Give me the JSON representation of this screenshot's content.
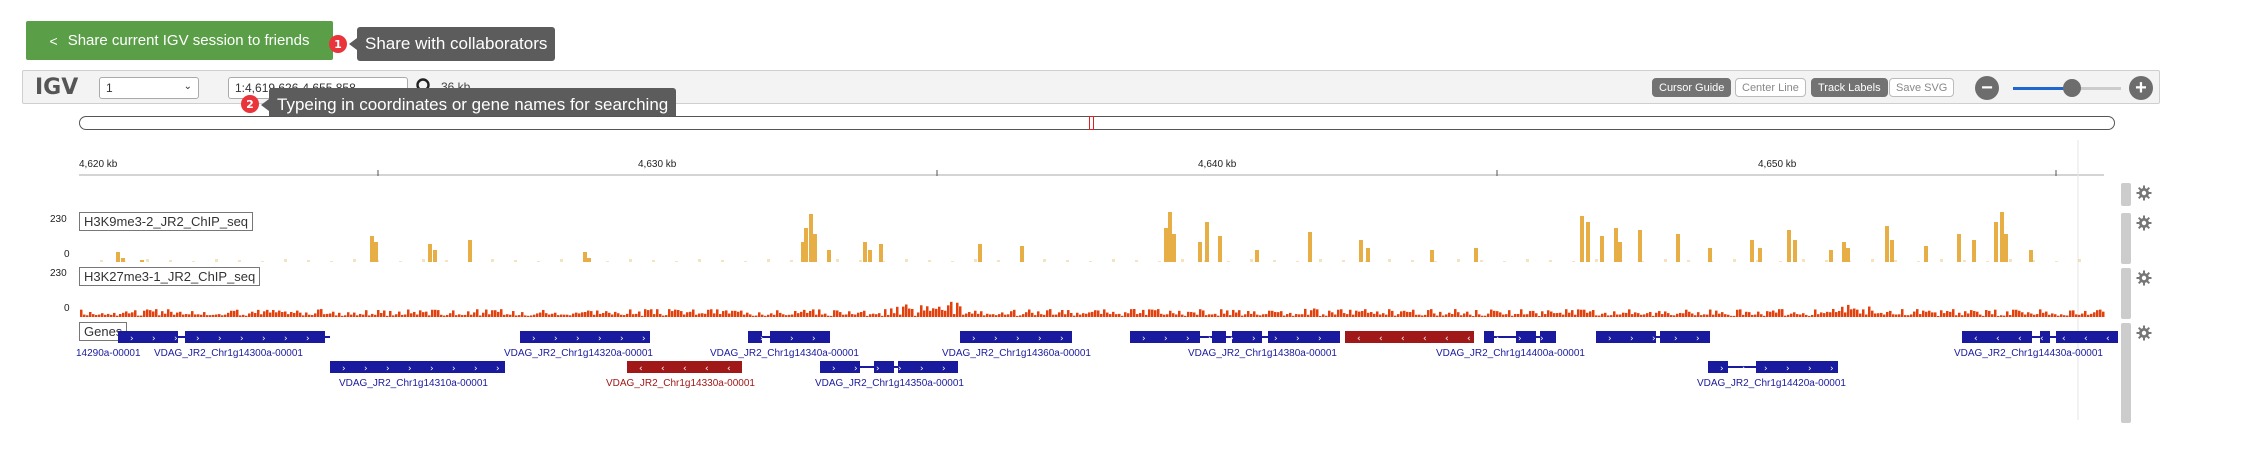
{
  "share": {
    "label": "Share current IGV session to friends",
    "icon": "share-icon"
  },
  "tour": {
    "step1": {
      "number": "1",
      "text": "Share with collaborators"
    },
    "step2": {
      "number": "2",
      "text": "Typeing in coordinates or gene names for searching"
    }
  },
  "igv": {
    "logo": "IGV",
    "chromosome": "1",
    "locus": "1:4,619,626-4,655,858",
    "window_size": "36 kb",
    "buttons": [
      {
        "label": "Cursor Guide",
        "active": true
      },
      {
        "label": "Center Line",
        "active": false
      },
      {
        "label": "Track Labels",
        "active": true
      },
      {
        "label": "Save SVG",
        "active": false
      }
    ],
    "zoom_level": 0.6
  },
  "ruler": {
    "labels": [
      "4,620 kb",
      "4,630 kb",
      "4,640 kb",
      "4,650 kb"
    ]
  },
  "tracks": [
    {
      "name": "H3K9me3-2_JR2_ChIP_seq",
      "color": "#e6ae44",
      "max": "230",
      "min": "0"
    },
    {
      "name": "H3K27me3-1_JR2_ChIP_seq",
      "color": "#e2400c",
      "max": "230",
      "min": "0"
    },
    {
      "name": "Genes"
    }
  ],
  "genes": [
    {
      "label": "14290a-00001",
      "color": "#1a1a9e"
    },
    {
      "label": "VDAG_JR2_Chr1g14300a-00001",
      "color": "#1a1a9e"
    },
    {
      "label": "VDAG_JR2_Chr1g14310a-00001",
      "color": "#1a1a9e"
    },
    {
      "label": "VDAG_JR2_Chr1g14320a-00001",
      "color": "#1a1a9e"
    },
    {
      "label": "VDAG_JR2_Chr1g14330a-00001",
      "color": "#a01818"
    },
    {
      "label": "VDAG_JR2_Chr1g14340a-00001",
      "color": "#1a1a9e"
    },
    {
      "label": "VDAG_JR2_Chr1g14350a-00001",
      "color": "#1a1a9e"
    },
    {
      "label": "VDAG_JR2_Chr1g14360a-00001",
      "color": "#1a1a9e"
    },
    {
      "label": "VDAG_JR2_Chr1g14380a-00001",
      "color": "#1a1a9e"
    },
    {
      "label": "VDAG_JR2_Chr1g14400a-00001",
      "color": "#1a1a9e"
    },
    {
      "label": "VDAG_JR2_Chr1g14420a-00001",
      "color": "#1a1a9e"
    },
    {
      "label": "VDAG_JR2_Chr1g14430a-00001",
      "color": "#1a1a9e"
    }
  ]
}
